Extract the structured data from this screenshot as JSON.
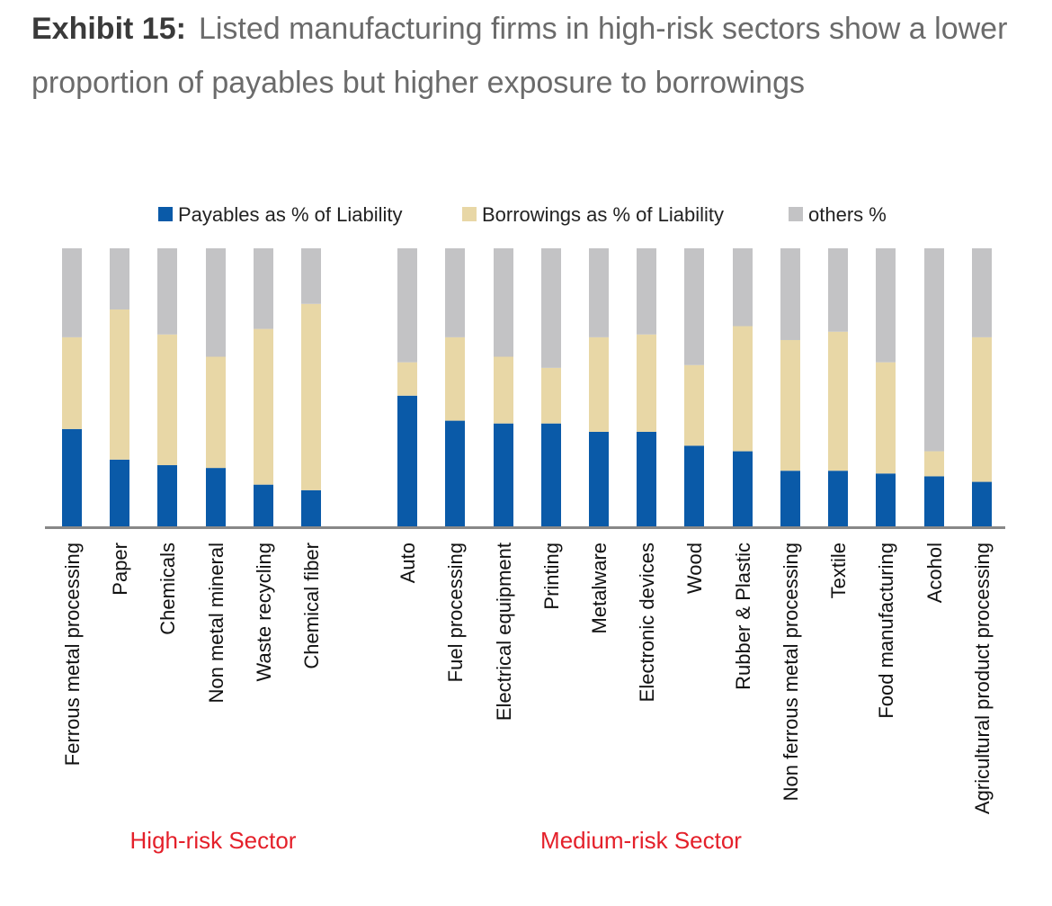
{
  "exhibit_label": "Exhibit 15:",
  "title_text": "Listed manufacturing firms in high-risk sectors show a lower proportion of payables but higher exposure to borrowings",
  "colors": {
    "payables": "#0a5aa8",
    "borrowings": "#e8d7a6",
    "others": "#c3c3c5",
    "sector_label": "#e4202a",
    "axis": "#888888"
  },
  "sectors": [
    {
      "label": "High-risk Sector",
      "first_index": 0,
      "last_index": 5
    },
    {
      "label": "Medium-risk Sector",
      "first_index": 6,
      "last_index": 18
    }
  ],
  "chart_data": {
    "type": "bar",
    "stacked": true,
    "ylim": [
      0,
      100
    ],
    "legend_position": "top",
    "categories": [
      "Ferrous metal processing",
      "Paper",
      "Chemicals",
      "Non metal mineral",
      "Waste recycling",
      "Chemical fiber",
      "Auto",
      "Fuel processing",
      "Electrical equipment",
      "Printing",
      "Metalware",
      "Electronic devices",
      "Wood",
      "Rubber & Plastic",
      "Non ferrous metal processing",
      "Textile",
      "Food manufacturing",
      "Acohol",
      "Agricultural product processing"
    ],
    "series": [
      {
        "name": "Payables as % of Liability",
        "key": "payables",
        "values": [
          35,
          24,
          22,
          21,
          15,
          13,
          47,
          38,
          37,
          37,
          34,
          34,
          29,
          27,
          20,
          20,
          19,
          18,
          16
        ]
      },
      {
        "name": "Borrowings as % of Liability",
        "key": "borrowings",
        "values": [
          33,
          54,
          47,
          40,
          56,
          67,
          12,
          30,
          24,
          20,
          34,
          35,
          29,
          45,
          47,
          50,
          40,
          9,
          52
        ]
      },
      {
        "name": "others %",
        "key": "others",
        "values": [
          32,
          22,
          31,
          39,
          29,
          20,
          41,
          32,
          39,
          43,
          32,
          31,
          42,
          28,
          33,
          30,
          41,
          73,
          32
        ]
      }
    ]
  }
}
